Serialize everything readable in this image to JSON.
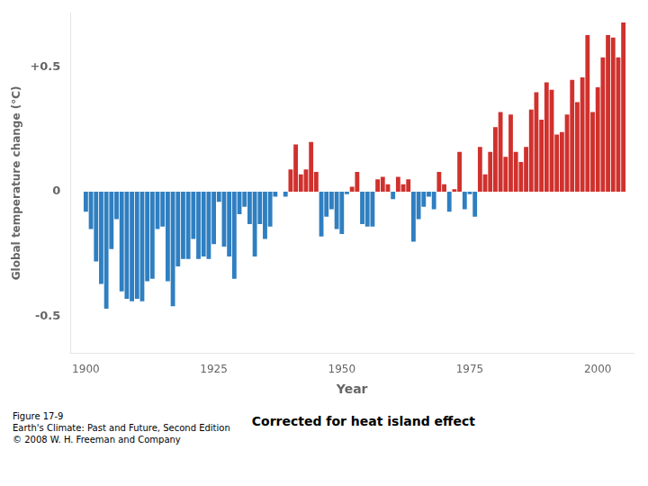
{
  "chart_data": {
    "type": "bar",
    "xlabel": "Year",
    "ylabel": "Global temperature change (°C)",
    "annotations": [
      "Figure 17-9\nEarth's Climate: Past and Future, Second Edition\n© 2008 W. H. Freeman and Company",
      "Corrected for heat island effect"
    ],
    "x": [
      1900,
      1901,
      1902,
      1903,
      1904,
      1905,
      1906,
      1907,
      1908,
      1909,
      1910,
      1911,
      1912,
      1913,
      1914,
      1915,
      1916,
      1917,
      1918,
      1919,
      1920,
      1921,
      1922,
      1923,
      1924,
      1925,
      1926,
      1927,
      1928,
      1929,
      1930,
      1931,
      1932,
      1933,
      1934,
      1935,
      1936,
      1937,
      1938,
      1939,
      1940,
      1941,
      1942,
      1943,
      1944,
      1945,
      1946,
      1947,
      1948,
      1949,
      1950,
      1951,
      1952,
      1953,
      1954,
      1955,
      1956,
      1957,
      1958,
      1959,
      1960,
      1961,
      1962,
      1963,
      1964,
      1965,
      1966,
      1967,
      1968,
      1969,
      1970,
      1971,
      1972,
      1973,
      1974,
      1975,
      1976,
      1977,
      1978,
      1979,
      1980,
      1981,
      1982,
      1983,
      1984,
      1985,
      1986,
      1987,
      1988,
      1989,
      1990,
      1991,
      1992,
      1993,
      1994,
      1995,
      1996,
      1997,
      1998,
      1999,
      2000,
      2001,
      2002,
      2003,
      2004,
      2005
    ],
    "values": [
      -0.08,
      -0.15,
      -0.28,
      -0.37,
      -0.47,
      -0.23,
      -0.11,
      -0.4,
      -0.43,
      -0.44,
      -0.43,
      -0.44,
      -0.36,
      -0.35,
      -0.15,
      -0.14,
      -0.36,
      -0.46,
      -0.3,
      -0.27,
      -0.27,
      -0.19,
      -0.27,
      -0.26,
      -0.27,
      -0.21,
      -0.04,
      -0.22,
      -0.26,
      -0.35,
      -0.09,
      -0.06,
      -0.13,
      -0.26,
      -0.13,
      -0.19,
      -0.14,
      -0.02,
      -0.0,
      -0.02,
      0.09,
      0.19,
      0.07,
      0.09,
      0.2,
      0.08,
      -0.18,
      -0.1,
      -0.07,
      -0.15,
      -0.17,
      -0.01,
      0.02,
      0.08,
      -0.13,
      -0.14,
      -0.14,
      0.05,
      0.06,
      0.03,
      -0.03,
      0.06,
      0.03,
      0.05,
      -0.2,
      -0.11,
      -0.06,
      -0.02,
      -0.07,
      0.08,
      0.03,
      -0.08,
      0.01,
      0.16,
      -0.07,
      -0.01,
      -0.1,
      0.18,
      0.07,
      0.16,
      0.26,
      0.32,
      0.14,
      0.31,
      0.16,
      0.12,
      0.18,
      0.33,
      0.4,
      0.29,
      0.44,
      0.41,
      0.23,
      0.24,
      0.31,
      0.45,
      0.36,
      0.46,
      0.63,
      0.32,
      0.42,
      0.54,
      0.63,
      0.62,
      0.54,
      0.68
    ],
    "colors": [
      "#2f7fc1",
      "#2f7fc1",
      "#2f7fc1",
      "#2f7fc1",
      "#2f7fc1",
      "#2f7fc1",
      "#2f7fc1",
      "#2f7fc1",
      "#2f7fc1",
      "#2f7fc1",
      "#2f7fc1",
      "#2f7fc1",
      "#2f7fc1",
      "#2f7fc1",
      "#2f7fc1",
      "#2f7fc1",
      "#2f7fc1",
      "#2f7fc1",
      "#2f7fc1",
      "#2f7fc1",
      "#2f7fc1",
      "#2f7fc1",
      "#2f7fc1",
      "#2f7fc1",
      "#2f7fc1",
      "#2f7fc1",
      "#2f7fc1",
      "#2f7fc1",
      "#2f7fc1",
      "#2f7fc1",
      "#2f7fc1",
      "#2f7fc1",
      "#2f7fc1",
      "#2f7fc1",
      "#2f7fc1",
      "#2f7fc1",
      "#2f7fc1",
      "#2f7fc1",
      "#2f7fc1",
      "#2f7fc1",
      "#d0312d",
      "#d0312d",
      "#d0312d",
      "#d0312d",
      "#d0312d",
      "#d0312d",
      "#2f7fc1",
      "#2f7fc1",
      "#2f7fc1",
      "#2f7fc1",
      "#2f7fc1",
      "#2f7fc1",
      "#d0312d",
      "#d0312d",
      "#2f7fc1",
      "#2f7fc1",
      "#2f7fc1",
      "#d0312d",
      "#d0312d",
      "#d0312d",
      "#2f7fc1",
      "#d0312d",
      "#d0312d",
      "#d0312d",
      "#2f7fc1",
      "#2f7fc1",
      "#2f7fc1",
      "#2f7fc1",
      "#2f7fc1",
      "#d0312d",
      "#d0312d",
      "#2f7fc1",
      "#d0312d",
      "#d0312d",
      "#2f7fc1",
      "#2f7fc1",
      "#2f7fc1",
      "#d0312d",
      "#d0312d",
      "#d0312d",
      "#d0312d",
      "#d0312d",
      "#d0312d",
      "#d0312d",
      "#d0312d",
      "#d0312d",
      "#d0312d",
      "#d0312d",
      "#d0312d",
      "#d0312d",
      "#d0312d",
      "#d0312d",
      "#d0312d",
      "#d0312d",
      "#d0312d",
      "#d0312d",
      "#d0312d",
      "#d0312d",
      "#d0312d",
      "#d0312d",
      "#d0312d",
      "#d0312d",
      "#d0312d",
      "#d0312d",
      "#d0312d",
      "#d0312d"
    ],
    "xlim": [
      1897,
      2007
    ],
    "xticks": [
      1900,
      1925,
      1950,
      1975,
      2000
    ],
    "ylim": [
      -0.65,
      0.72
    ],
    "yticks": [
      -0.5,
      0,
      {
        "value": 0.5,
        "label": "+0.5"
      }
    ],
    "grid": false
  }
}
